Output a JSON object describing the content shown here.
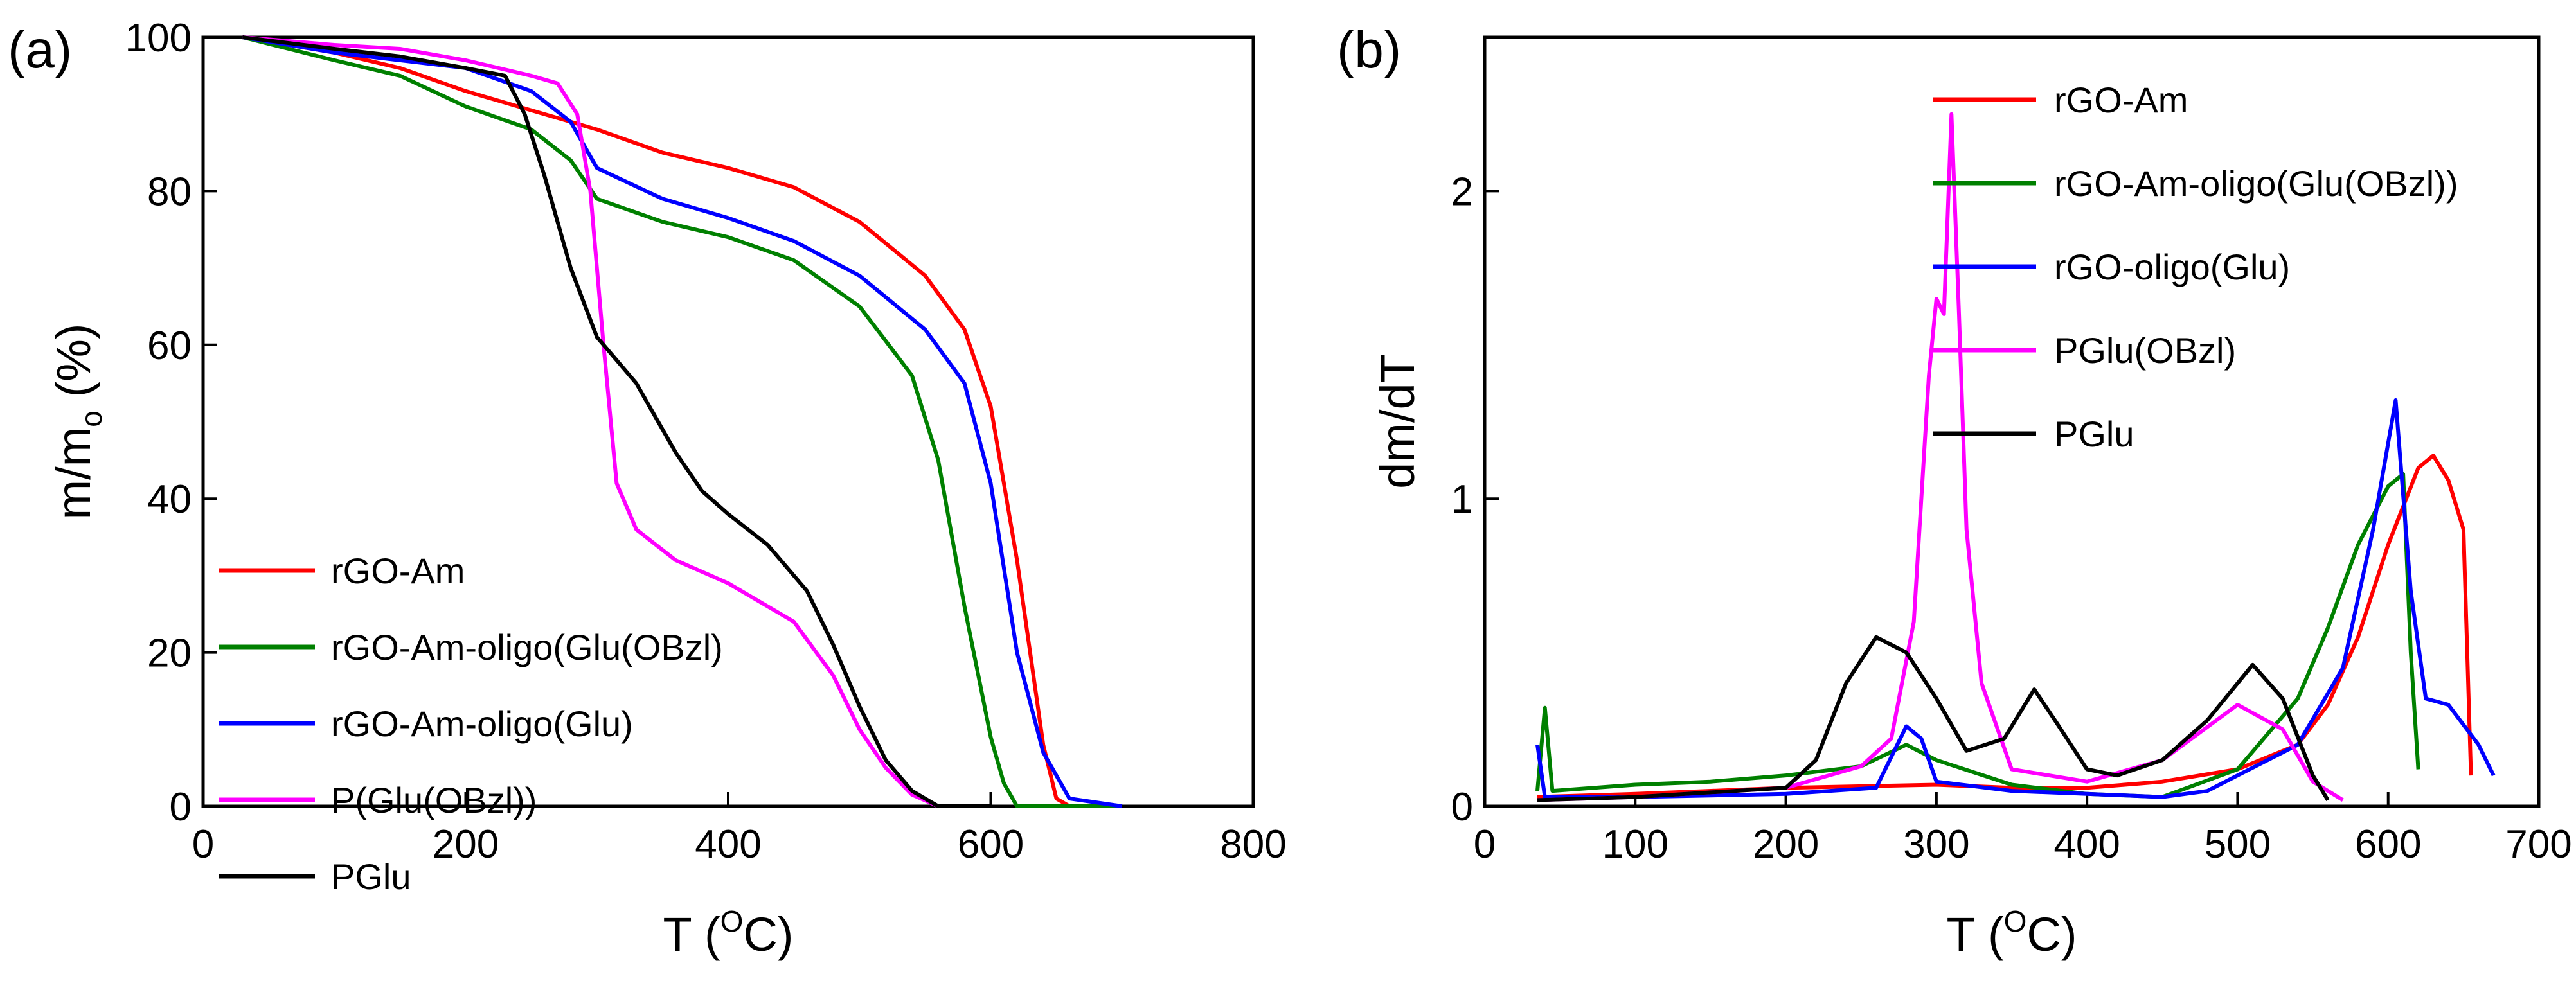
{
  "chart_data": [
    {
      "type": "line",
      "panel_label": "(a)",
      "xlabel": "T (°C)",
      "ylabel": "m/mo (%)",
      "xlim": [
        0,
        800
      ],
      "ylim": [
        0,
        100
      ],
      "xticks": [
        0,
        200,
        400,
        600,
        800
      ],
      "yticks": [
        0,
        20,
        40,
        60,
        80,
        100
      ],
      "legend_position": "lower-left",
      "series": [
        {
          "name": "rGO-Am",
          "color": "#ff0000",
          "x": [
            30,
            100,
            150,
            200,
            250,
            300,
            350,
            400,
            450,
            500,
            550,
            580,
            600,
            620,
            640,
            650,
            660,
            700
          ],
          "y": [
            100,
            98,
            96,
            93,
            90.5,
            88,
            85,
            83,
            80.5,
            76,
            69,
            62,
            52,
            32,
            8,
            1,
            0,
            0
          ]
        },
        {
          "name": "rGO-Am-oligo(Glu(OBzl)",
          "color": "#008000",
          "x": [
            30,
            100,
            150,
            200,
            250,
            280,
            300,
            350,
            400,
            450,
            500,
            540,
            560,
            580,
            600,
            610,
            620,
            700
          ],
          "y": [
            100,
            97,
            95,
            91,
            88,
            84,
            79,
            76,
            74,
            71,
            65,
            56,
            45,
            26,
            9,
            3,
            0,
            0
          ]
        },
        {
          "name": "rGO-Am-oligo(Glu)",
          "color": "#0000ff",
          "x": [
            30,
            100,
            150,
            200,
            250,
            280,
            300,
            350,
            400,
            450,
            500,
            550,
            580,
            600,
            620,
            640,
            660,
            700
          ],
          "y": [
            100,
            98,
            97,
            96,
            93,
            89,
            83,
            79,
            76.5,
            73.5,
            69,
            62,
            55,
            42,
            20,
            7,
            1,
            0
          ]
        },
        {
          "name": "P(Glu(OBzl))",
          "color": "#ff00ff",
          "x": [
            30,
            100,
            150,
            200,
            250,
            270,
            285,
            295,
            305,
            315,
            330,
            360,
            400,
            450,
            480,
            500,
            520,
            540,
            560,
            600
          ],
          "y": [
            100,
            99,
            98.5,
            97,
            95,
            94,
            90,
            80,
            60,
            42,
            36,
            32,
            29,
            24,
            17,
            10,
            5,
            1.5,
            0,
            0
          ]
        },
        {
          "name": "PGlu",
          "color": "#000000",
          "x": [
            30,
            100,
            150,
            200,
            230,
            245,
            260,
            280,
            300,
            330,
            360,
            380,
            400,
            430,
            460,
            480,
            500,
            520,
            540,
            560,
            600
          ],
          "y": [
            100,
            98.5,
            97.5,
            96,
            95,
            90,
            82,
            70,
            61,
            55,
            46,
            41,
            38,
            34,
            28,
            21,
            13,
            6,
            2,
            0,
            0
          ]
        }
      ]
    },
    {
      "type": "line",
      "panel_label": "(b)",
      "xlabel": "T (°C)",
      "ylabel": "dm/dT",
      "xlim": [
        0,
        700
      ],
      "ylim": [
        0,
        2.5
      ],
      "xticks": [
        0,
        100,
        200,
        300,
        400,
        500,
        600,
        700
      ],
      "yticks": [
        0,
        1,
        2
      ],
      "legend_position": "top-right",
      "series": [
        {
          "name": "rGO-Am",
          "color": "#ff0000",
          "x": [
            35,
            100,
            200,
            300,
            350,
            400,
            450,
            500,
            540,
            560,
            580,
            600,
            620,
            630,
            640,
            650,
            655
          ],
          "y": [
            0.03,
            0.04,
            0.06,
            0.07,
            0.06,
            0.06,
            0.08,
            0.12,
            0.2,
            0.33,
            0.55,
            0.85,
            1.1,
            1.14,
            1.06,
            0.9,
            0.1
          ]
        },
        {
          "name": "rGO-Am-oligo(Glu(OBzl))",
          "color": "#008000",
          "x": [
            35,
            40,
            45,
            100,
            150,
            200,
            250,
            280,
            300,
            350,
            400,
            450,
            500,
            540,
            560,
            580,
            600,
            610,
            615,
            620
          ],
          "y": [
            0.05,
            0.32,
            0.05,
            0.07,
            0.08,
            0.1,
            0.13,
            0.2,
            0.15,
            0.07,
            0.04,
            0.03,
            0.12,
            0.35,
            0.58,
            0.85,
            1.04,
            1.08,
            0.5,
            0.12
          ]
        },
        {
          "name": "rGO-oligo(Glu)",
          "color": "#0000ff",
          "x": [
            35,
            40,
            100,
            200,
            260,
            280,
            290,
            300,
            350,
            400,
            450,
            480,
            500,
            540,
            570,
            590,
            605,
            615,
            625,
            640,
            660,
            670
          ],
          "y": [
            0.2,
            0.03,
            0.03,
            0.04,
            0.06,
            0.26,
            0.22,
            0.08,
            0.05,
            0.04,
            0.03,
            0.05,
            0.1,
            0.2,
            0.45,
            0.9,
            1.32,
            0.7,
            0.35,
            0.33,
            0.2,
            0.1
          ]
        },
        {
          "name": "PGlu(OBzl)",
          "color": "#ff00ff",
          "x": [
            35,
            100,
            200,
            250,
            270,
            285,
            295,
            300,
            305,
            310,
            315,
            320,
            330,
            350,
            400,
            450,
            500,
            530,
            550,
            570
          ],
          "y": [
            0.02,
            0.03,
            0.06,
            0.13,
            0.22,
            0.6,
            1.4,
            1.65,
            1.6,
            2.25,
            1.6,
            0.9,
            0.4,
            0.12,
            0.08,
            0.15,
            0.33,
            0.25,
            0.08,
            0.02
          ]
        },
        {
          "name": "PGlu",
          "color": "#000000",
          "x": [
            35,
            100,
            200,
            220,
            240,
            260,
            280,
            300,
            320,
            345,
            365,
            380,
            400,
            420,
            450,
            480,
            510,
            530,
            550,
            560
          ],
          "y": [
            0.02,
            0.03,
            0.06,
            0.15,
            0.4,
            0.55,
            0.5,
            0.35,
            0.18,
            0.22,
            0.38,
            0.27,
            0.12,
            0.1,
            0.15,
            0.28,
            0.46,
            0.35,
            0.1,
            0.02
          ]
        }
      ]
    }
  ]
}
